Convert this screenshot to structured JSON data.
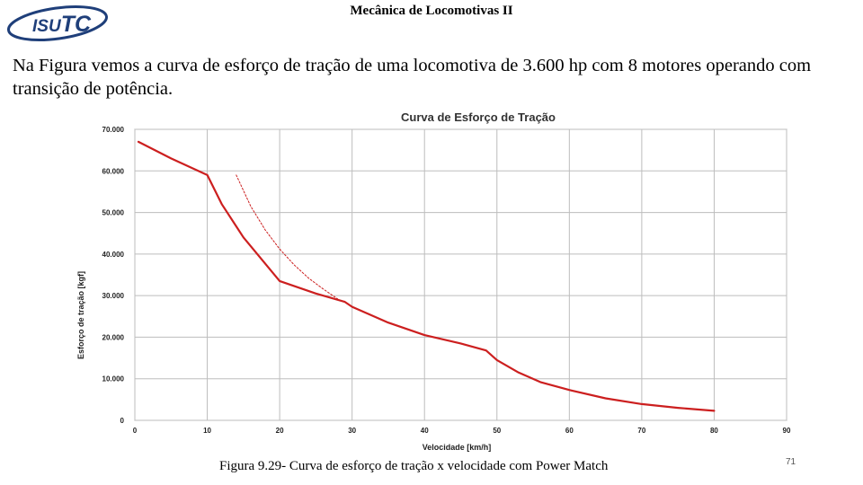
{
  "header": {
    "title": "Mecânica de Locomotivas II"
  },
  "logo": {
    "text": "ISUTC",
    "prefix": "ISU",
    "suffix": "TC",
    "color": "#1f3f7a"
  },
  "intro": {
    "text": "Na Figura vemos a curva de esforço de tração de uma locomotiva de 3.600 hp com 8 motores operando com transição de potência."
  },
  "caption": {
    "text": "Figura 9.29- Curva de esforço de tração x velocidade com Power Match"
  },
  "slide_number": "71",
  "chart_data": {
    "type": "line",
    "title": "Curva de Esforço de Tração",
    "xlabel": "Velocidade [km/h]",
    "ylabel": "Esforço de tração [kgf]",
    "xlim": [
      0,
      90
    ],
    "ylim": [
      0,
      70000
    ],
    "xticks": [
      "0",
      "10",
      "20",
      "30",
      "40",
      "50",
      "60",
      "70",
      "80",
      "90"
    ],
    "yticks": [
      "0",
      "10.000",
      "20.000",
      "30.000",
      "40.000",
      "50.000",
      "60.000",
      "70.000"
    ],
    "grid": true,
    "colors": {
      "series": "#cc1f1f",
      "grid": "#bdbdbd",
      "title": "#333333"
    },
    "series": [
      {
        "style": "solid",
        "x": [
          0.5,
          5,
          10,
          12,
          15,
          20,
          25,
          29,
          30,
          35,
          40,
          45,
          48.5,
          50,
          53,
          56,
          60,
          65,
          70,
          75,
          80
        ],
        "y": [
          67000,
          63000,
          59000,
          52000,
          44000,
          33500,
          30500,
          28500,
          27300,
          23500,
          20500,
          18500,
          16800,
          14500,
          11500,
          9200,
          7300,
          5300,
          3900,
          3000,
          2300
        ]
      },
      {
        "style": "dotted",
        "x": [
          14,
          16,
          18,
          20,
          22,
          24,
          26,
          28
        ],
        "y": [
          59000,
          51500,
          45800,
          41200,
          37400,
          34200,
          31600,
          29200
        ]
      }
    ]
  }
}
